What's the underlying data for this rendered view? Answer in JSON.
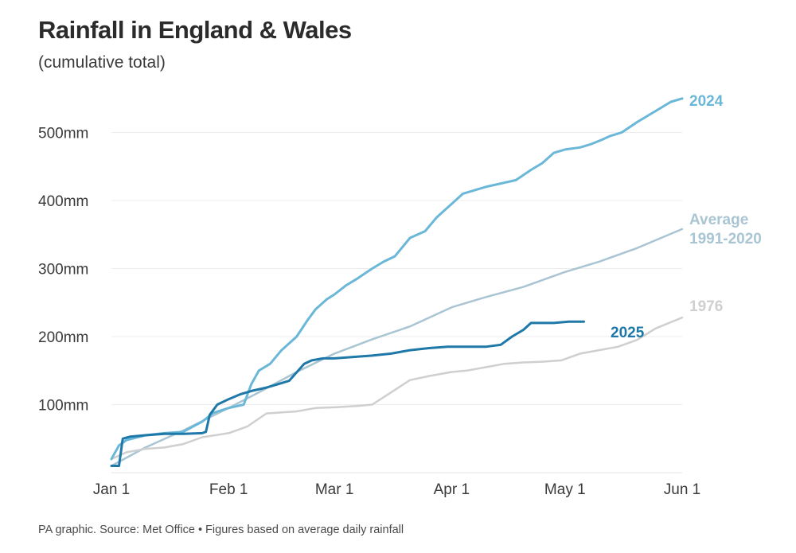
{
  "title": "Rainfall in England & Wales",
  "subtitle": "(cumulative total)",
  "footer": "PA graphic. Source: Met Office • Figures based on average daily rainfall",
  "chart_data": {
    "type": "line",
    "x_unit": "day of year",
    "xlim": [
      1,
      152
    ],
    "ylim": [
      0,
      600
    ],
    "y_ticks": [
      {
        "value": 100,
        "label": "100mm"
      },
      {
        "value": 200,
        "label": "200mm"
      },
      {
        "value": 300,
        "label": "300mm"
      },
      {
        "value": 400,
        "label": "400mm"
      },
      {
        "value": 500,
        "label": "500mm"
      }
    ],
    "x_ticks": [
      {
        "value": 1,
        "label": "Jan 1"
      },
      {
        "value": 32,
        "label": "Feb 1"
      },
      {
        "value": 60,
        "label": "Mar 1"
      },
      {
        "value": 91,
        "label": "Apr 1"
      },
      {
        "value": 121,
        "label": "May 1"
      },
      {
        "value": 152,
        "label": "Jun 1"
      }
    ],
    "grid": true,
    "series": [
      {
        "name": "Average 1991-2020",
        "label_lines": [
          "Average",
          "1991-2020"
        ],
        "color": "#a9c5d3",
        "x": [
          1,
          10,
          20,
          32,
          40,
          50,
          60,
          70,
          80,
          91,
          100,
          110,
          121,
          130,
          140,
          152
        ],
        "y": [
          10,
          37,
          62,
          95,
          118,
          148,
          175,
          196,
          215,
          243,
          258,
          273,
          295,
          310,
          330,
          358
        ]
      },
      {
        "name": "1976",
        "label_lines": [
          "1976"
        ],
        "color": "#cfcfcf",
        "x": [
          1,
          5,
          10,
          15,
          20,
          25,
          32,
          37,
          42,
          50,
          55,
          60,
          66,
          70,
          75,
          80,
          85,
          91,
          95,
          100,
          105,
          110,
          115,
          120,
          125,
          130,
          135,
          140,
          145,
          152
        ],
        "y": [
          20,
          30,
          35,
          37,
          42,
          52,
          58,
          68,
          87,
          90,
          95,
          96,
          98,
          100,
          118,
          136,
          142,
          148,
          150,
          155,
          160,
          162,
          163,
          165,
          175,
          180,
          185,
          195,
          212,
          228
        ]
      },
      {
        "name": "2024",
        "label_lines": [
          "2024"
        ],
        "color": "#6ab7d8",
        "x": [
          1,
          3,
          5,
          10,
          15,
          20,
          25,
          28,
          32,
          36,
          38,
          40,
          43,
          46,
          50,
          53,
          55,
          58,
          60,
          63,
          66,
          70,
          73,
          76,
          80,
          84,
          87,
          91,
          94,
          97,
          100,
          104,
          108,
          112,
          115,
          118,
          121,
          125,
          128,
          131,
          133,
          136,
          140,
          143,
          146,
          149,
          152
        ],
        "y": [
          20,
          40,
          48,
          55,
          58,
          60,
          75,
          88,
          95,
          100,
          130,
          150,
          160,
          180,
          200,
          225,
          240,
          255,
          262,
          275,
          285,
          300,
          310,
          318,
          345,
          355,
          375,
          395,
          410,
          415,
          420,
          425,
          430,
          445,
          455,
          470,
          475,
          478,
          483,
          490,
          495,
          500,
          515,
          525,
          535,
          545,
          550
        ]
      },
      {
        "name": "2025",
        "label_lines": [
          "2025"
        ],
        "color": "#1e78a8",
        "x": [
          1,
          3,
          4,
          6,
          10,
          15,
          20,
          25,
          26,
          27,
          29,
          32,
          35,
          38,
          42,
          45,
          48,
          52,
          54,
          57,
          60,
          65,
          70,
          75,
          80,
          85,
          90,
          95,
          100,
          104,
          107,
          110,
          112,
          115,
          118,
          122,
          126
        ],
        "y": [
          10,
          10,
          50,
          53,
          55,
          57,
          57,
          58,
          60,
          85,
          100,
          108,
          115,
          120,
          125,
          130,
          135,
          160,
          165,
          168,
          168,
          170,
          172,
          175,
          180,
          183,
          185,
          185,
          185,
          188,
          200,
          210,
          220,
          220,
          220,
          222,
          222
        ]
      }
    ]
  }
}
